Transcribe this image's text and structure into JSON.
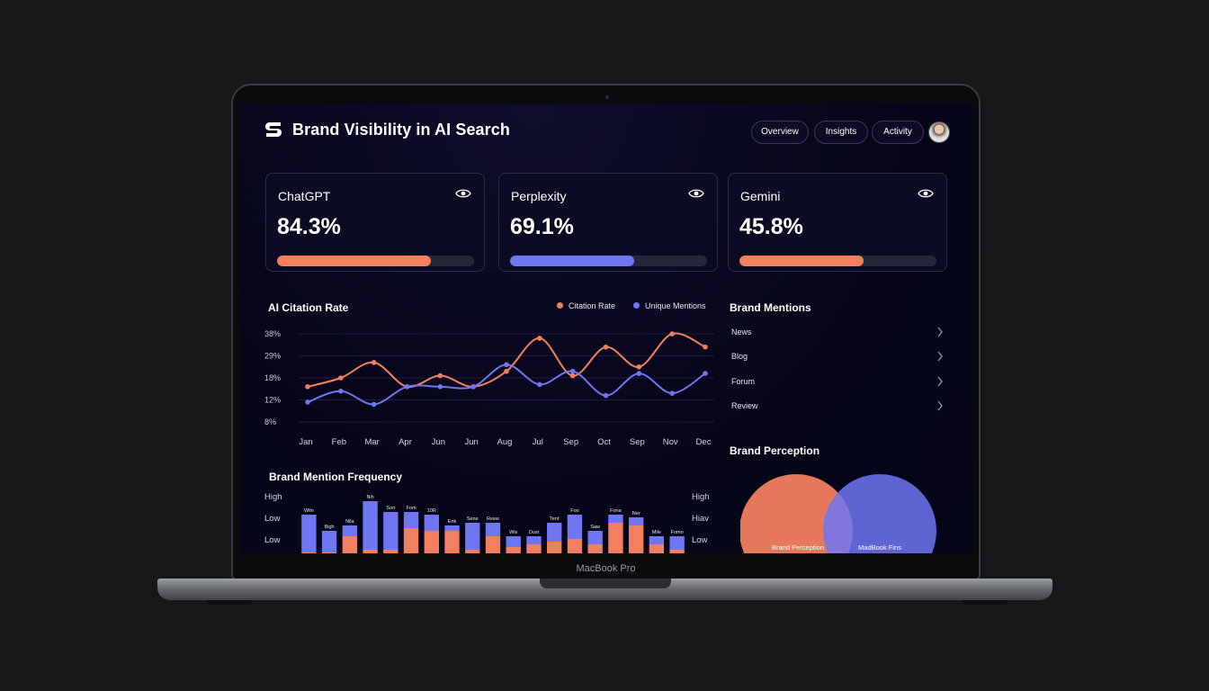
{
  "header": {
    "title": "Brand Visibility in AI Search",
    "logo_icon": "s-logo-icon",
    "nav": [
      "Overview",
      "Insights",
      "Activity"
    ],
    "avatar_icon": "user-avatar"
  },
  "kpis": [
    {
      "name": "ChatGPT",
      "value": "84.3%",
      "fill": 0.78,
      "color": "#f2805f",
      "icon": "eye-icon"
    },
    {
      "name": "Perplexity",
      "value": "69.1%",
      "fill": 0.63,
      "color": "#6e76f2",
      "icon": "eye-icon"
    },
    {
      "name": "Gemini",
      "value": "45.8%",
      "fill": 0.63,
      "color": "#f2805f",
      "icon": "eye-icon"
    }
  ],
  "citation": {
    "title": "AI Citation Rate",
    "legend": [
      "Citation Rate",
      "Unique Mentions"
    ]
  },
  "frequency": {
    "title": "Brand Mention Frequency",
    "left_labels": [
      "High",
      "Low",
      "Low"
    ],
    "right_labels": [
      "High",
      "Hiav",
      "Low"
    ],
    "bar_labels": [
      "Wiln",
      "Bigh",
      "Nila",
      "Nih",
      "Son",
      "Fom",
      "10R",
      "Enk",
      "Sene",
      "Rewe",
      "Wis",
      "Dust",
      "Tent",
      "Foo",
      "Saw",
      "Fona",
      "Ner",
      "Mile",
      "Fomo"
    ]
  },
  "mentions": {
    "title": "Brand Mentions",
    "items": [
      "News",
      "Blog",
      "Forum",
      "Review"
    ],
    "chevron_icon": "chevron-right-icon"
  },
  "perception": {
    "title": "Brand Perception",
    "left_label": "Brand Perception",
    "right_label": "MadBook Fins"
  },
  "device": {
    "label": "MacBook Pro"
  },
  "colors": {
    "orange": "#f2805f",
    "blue": "#6e76f2",
    "background": "#161719",
    "screen": "#07061b"
  },
  "chart_data": [
    {
      "type": "line",
      "title": "AI Citation Rate",
      "x": [
        "Jan",
        "Feb",
        "Mar",
        "Apr",
        "Jun",
        "Jun",
        "Aug",
        "Jul",
        "Sep",
        "Oct",
        "Sep",
        "Nov",
        "Dec"
      ],
      "yticks": [
        "38%",
        "29%",
        "18%",
        "12%",
        "8%"
      ],
      "ylim": [
        0,
        40
      ],
      "grid": true,
      "legend_position": "top-right",
      "series": [
        {
          "name": "Citation Rate",
          "color": "#f2805f",
          "values": [
            16,
            20,
            27,
            16,
            21,
            16,
            23,
            38,
            21,
            34,
            25,
            40,
            34
          ]
        },
        {
          "name": "Unique Mentions",
          "color": "#6e76f2",
          "values": [
            9,
            14,
            8,
            16,
            16,
            16,
            26,
            17,
            23,
            12,
            22,
            13,
            22
          ]
        }
      ]
    },
    {
      "type": "bar",
      "title": "Brand Mention Frequency",
      "stacked": true,
      "categories": [
        "Wiln",
        "Bigh",
        "Nila",
        "Nih",
        "Son",
        "Fom",
        "10R",
        "Enk",
        "Sene",
        "Rewe",
        "Wis",
        "Dust",
        "Tent",
        "Foo",
        "Saw",
        "Fona",
        "Ner",
        "Mile",
        "Fomo"
      ],
      "series": [
        {
          "color": "#f2805f",
          "values": [
            0.1,
            0.1,
            0.4,
            0.15,
            0.15,
            0.55,
            0.5,
            0.5,
            0.15,
            0.4,
            0.2,
            0.25,
            0.3,
            0.35,
            0.25,
            0.65,
            0.6,
            0.25,
            0.15
          ]
        },
        {
          "color": "#6e76f2",
          "values": [
            0.7,
            0.4,
            0.2,
            0.9,
            0.7,
            0.3,
            0.3,
            0.1,
            0.5,
            0.25,
            0.2,
            0.15,
            0.35,
            0.45,
            0.25,
            0.15,
            0.15,
            0.15,
            0.25
          ]
        }
      ]
    }
  ]
}
